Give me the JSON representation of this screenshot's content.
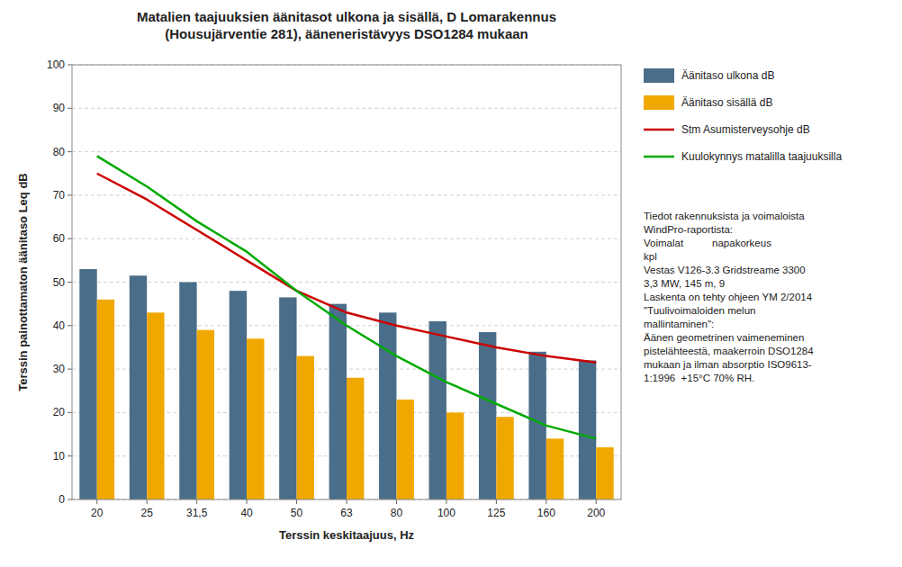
{
  "chart_data": {
    "type": "bar",
    "title": "Matalien taajuuksien äänitasot ulkona ja sisällä, D Lomarakennus\n(Housujärventie 281), ääneneristävyys DSO1284 mukaan",
    "x_label": "Terssin keskitaajuus, Hz",
    "y_label": "Terssin painottamaton äänitaso Leq dB",
    "categories": [
      "20",
      "25",
      "31,5",
      "40",
      "50",
      "63",
      "80",
      "100",
      "125",
      "160",
      "200"
    ],
    "series": [
      {
        "name": "Äänitaso ulkona dB",
        "type": "bar",
        "color": "#4a6e8a",
        "values": [
          53,
          51.5,
          50,
          48,
          46.5,
          45,
          43,
          41,
          38.5,
          34,
          32
        ]
      },
      {
        "name": "Äänitaso sisällä dB",
        "type": "bar",
        "color": "#f0a800",
        "values": [
          46,
          43,
          39,
          37,
          33,
          28,
          23,
          20,
          19,
          14,
          12
        ]
      },
      {
        "name": "Stm Asumisterveysohje dB",
        "type": "line",
        "color": "#cc0000",
        "values": [
          75,
          69,
          62,
          55,
          48,
          43,
          40,
          37.5,
          35,
          33,
          31.5
        ]
      },
      {
        "name": "Kuulokynnys matalilla taajuuksilla",
        "type": "line",
        "color": "#00aa00",
        "values": [
          79,
          72,
          64,
          57,
          48,
          40,
          33,
          27,
          22,
          17,
          14
        ]
      }
    ],
    "ylim": [
      0,
      100
    ],
    "yticks": [
      0,
      10,
      20,
      30,
      40,
      50,
      60,
      70,
      80,
      90,
      100
    ],
    "grid": true,
    "legend": "right",
    "annotation": "Tiedot rakennuksista ja voimaloista\nWindPro-raportista:\nVoimalat          napakorkeus\nkpl\nVestas V126-3.3 Gridstreame 3300\n3,3 MW, 145 m, 9\nLaskenta on tehty ohjeen YM 2/2014\n\"Tuulivoimaloiden melun\nmallintaminen\":\nÄänen geometrinen vaimeneminen\npistelähteestä, maakerroin DSO1284\nmukaan ja ilman absorptio ISO9613-\n1:1996  +15°C 70% RH."
  }
}
